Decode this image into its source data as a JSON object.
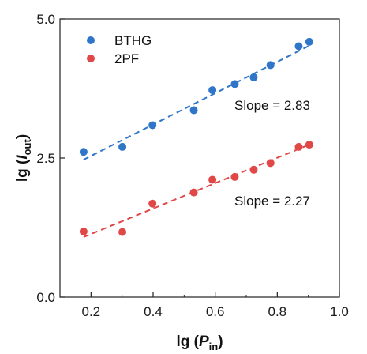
{
  "chart_data": {
    "type": "scatter",
    "xlabel": {
      "prefix": "lg (",
      "var": "P",
      "sub": "in",
      "suffix": ")"
    },
    "ylabel": {
      "prefix": "lg (",
      "var": "I",
      "sub": "out",
      "suffix": ")"
    },
    "xlim": [
      0.1,
      1.0
    ],
    "ylim": [
      0.0,
      5.0
    ],
    "x_ticks": [
      0.2,
      0.4,
      0.6,
      0.8,
      1.0
    ],
    "x_tick_labels": [
      "0.2",
      "0.4",
      "0.6",
      "0.8",
      "1.0"
    ],
    "y_ticks": [
      0.0,
      2.5,
      5.0
    ],
    "y_tick_labels": [
      "0.0",
      "2.5",
      "5.0"
    ],
    "grid": false,
    "legend_position": "top-left",
    "series": [
      {
        "name": "BTHG",
        "color": "#2f76c9",
        "x": [
          0.176,
          0.301,
          0.398,
          0.531,
          0.591,
          0.663,
          0.724,
          0.778,
          0.869,
          0.903
        ],
        "y": [
          2.61,
          2.7,
          3.09,
          3.36,
          3.72,
          3.83,
          3.95,
          4.17,
          4.51,
          4.59
        ],
        "fit": {
          "x": [
            0.176,
            0.903
          ],
          "y": [
            2.47,
            4.52
          ]
        },
        "annotation": "Slope = 2.83"
      },
      {
        "name": "2PF",
        "color": "#e04848",
        "x": [
          0.176,
          0.301,
          0.398,
          0.531,
          0.591,
          0.663,
          0.724,
          0.778,
          0.869,
          0.903
        ],
        "y": [
          1.18,
          1.17,
          1.68,
          1.88,
          2.11,
          2.16,
          2.29,
          2.41,
          2.7,
          2.74
        ],
        "fit": {
          "x": [
            0.176,
            0.903
          ],
          "y": [
            1.08,
            2.74
          ]
        },
        "annotation": "Slope = 2.27"
      }
    ]
  }
}
